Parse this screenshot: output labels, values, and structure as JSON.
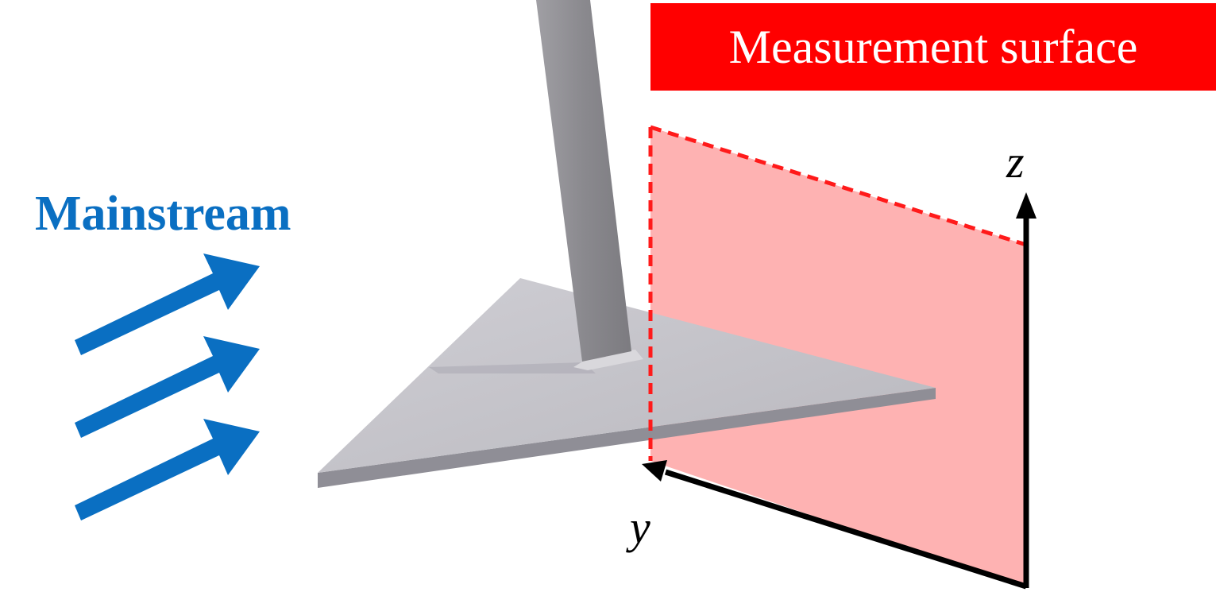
{
  "figure": {
    "title": "Measurement surface",
    "flow_label": "Mainstream",
    "axis_z_label": "z",
    "axis_y_label": "y",
    "flow_arrow_count": 3
  },
  "colors": {
    "title_bg": "#ff0000",
    "title_text": "#ffffff",
    "flow": "#0a6fc2",
    "surface_fill": "#feb2b2",
    "surface_edge": "#ff1a1a",
    "plate": "#c7c6cc",
    "plate_side": "#8f8e96",
    "pole": "#8c8b90",
    "axis": "#000000"
  }
}
